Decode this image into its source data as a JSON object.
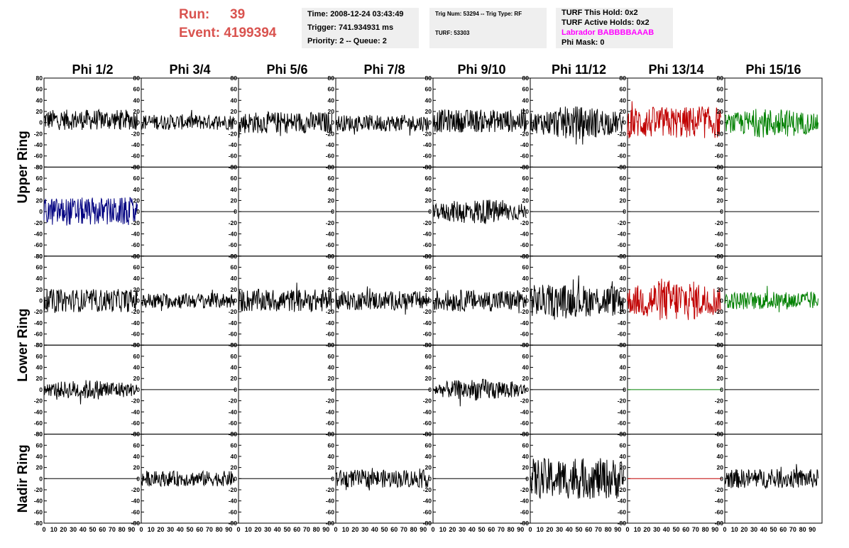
{
  "header": {
    "run_label": "Run:",
    "run_value": "39",
    "event_label": "Event:",
    "event_value": "4199394",
    "time": "Time: 2008-12-24 03:43:49",
    "trigger": "Trigger: 741.934931 ms",
    "priority": "Priority: 2 -- Queue: 2",
    "trig_num": "Trig Num: 53294 -- Trig Type: RF",
    "turf": "TURF: 53303",
    "turf_hold": "TURF This Hold: 0x2",
    "turf_active": "TURF Active Holds: 0x2",
    "labrador": "Labrador BABBBBAAAB",
    "phi_mask": "Phi Mask: 0"
  },
  "colors": {
    "run": "#d9534f",
    "labrador": "#ff00ff",
    "black_trace": "#000000",
    "red_trace": "#c00000",
    "green_trace": "#008000",
    "blue_trace": "#000080"
  },
  "chart_data": {
    "type": "line",
    "columns": [
      "Phi 1/2",
      "Phi 3/4",
      "Phi 5/6",
      "Phi 7/8",
      "Phi 9/10",
      "Phi 11/12",
      "Phi 13/14",
      "Phi 15/16"
    ],
    "ring_labels": [
      "Upper Ring",
      "Lower Ring",
      "Nadir Ring"
    ],
    "ylim": [
      -80,
      80
    ],
    "xlim": [
      0,
      100
    ],
    "yticks": [
      "80",
      "60",
      "40",
      "20",
      "0",
      "-20",
      "-40",
      "-60",
      "-80"
    ],
    "xticks": [
      "0",
      "10",
      "20",
      "30",
      "40",
      "50",
      "60",
      "70",
      "80",
      "90"
    ],
    "rows": [
      [
        {
          "c": "black",
          "a": 16,
          "dc": 5,
          "m": 0
        },
        {
          "c": "black",
          "a": 12,
          "dc": 1,
          "m": 0
        },
        {
          "c": "black",
          "a": 17,
          "dc": 0,
          "m": 1
        },
        {
          "c": "black",
          "a": 13,
          "dc": -1,
          "m": 1
        },
        {
          "c": "black",
          "a": 18,
          "dc": 3,
          "m": 0
        },
        {
          "c": "black",
          "a": 26,
          "dc": 0,
          "m": 3
        },
        {
          "c": "red",
          "a": 25,
          "dc": 0,
          "m": 0
        },
        {
          "c": "green",
          "a": 19,
          "dc": -1,
          "m": 2
        }
      ],
      [
        {
          "c": "blue",
          "a": 22,
          "dc": 0,
          "m": 0
        },
        {
          "c": "flat",
          "a": 0,
          "dc": 0,
          "m": 0
        },
        {
          "c": "flat",
          "a": 0,
          "dc": 0,
          "m": 0
        },
        {
          "c": "flat",
          "a": 0,
          "dc": 0,
          "m": 0
        },
        {
          "c": "black",
          "a": 20,
          "dc": 0,
          "m": 3
        },
        {
          "c": "flat",
          "a": 0,
          "dc": 0,
          "m": 0
        },
        {
          "c": "flat",
          "a": 0,
          "dc": 0,
          "m": 0
        },
        {
          "c": "flat",
          "a": 0,
          "dc": 0,
          "m": 0
        }
      ],
      [
        {
          "c": "black",
          "a": 18,
          "dc": 0,
          "m": 0
        },
        {
          "c": "black",
          "a": 12,
          "dc": 0,
          "m": 1
        },
        {
          "c": "black",
          "a": 18,
          "dc": 0,
          "m": 0
        },
        {
          "c": "black",
          "a": 15,
          "dc": 0,
          "m": 0
        },
        {
          "c": "black",
          "a": 17,
          "dc": 0,
          "m": 0
        },
        {
          "c": "black",
          "a": 25,
          "dc": 0,
          "m": 0
        },
        {
          "c": "red",
          "a": 28,
          "dc": 0,
          "m": 2
        },
        {
          "c": "green",
          "a": 14,
          "dc": 0,
          "m": 0
        }
      ],
      [
        {
          "c": "black",
          "a": 13,
          "dc": 0,
          "m": 2
        },
        {
          "c": "flat",
          "a": 0,
          "dc": 0,
          "m": 0
        },
        {
          "c": "flat",
          "a": 0,
          "dc": 0,
          "m": 0
        },
        {
          "c": "flat",
          "a": 0,
          "dc": 0,
          "m": 0
        },
        {
          "c": "black",
          "a": 17,
          "dc": 0,
          "m": 3
        },
        {
          "c": "flat",
          "a": 0,
          "dc": 0,
          "m": 0
        },
        {
          "c": "flatgreen",
          "a": 0,
          "dc": 0,
          "m": 0
        },
        {
          "c": "flat",
          "a": 0,
          "dc": 0,
          "m": 0
        }
      ],
      [
        {
          "c": "flat",
          "a": 0,
          "dc": 0,
          "m": 0
        },
        {
          "c": "black",
          "a": 12,
          "dc": 0,
          "m": 1
        },
        {
          "c": "flat",
          "a": 0,
          "dc": 0,
          "m": 0
        },
        {
          "c": "black",
          "a": 14,
          "dc": 0,
          "m": 1
        },
        {
          "c": "flat",
          "a": 0,
          "dc": 0,
          "m": 0
        },
        {
          "c": "black",
          "a": 32,
          "dc": 0,
          "m": 0
        },
        {
          "c": "flatred",
          "a": 0,
          "dc": 0,
          "m": 0
        },
        {
          "c": "black",
          "a": 15,
          "dc": 0,
          "m": 1
        }
      ]
    ]
  }
}
